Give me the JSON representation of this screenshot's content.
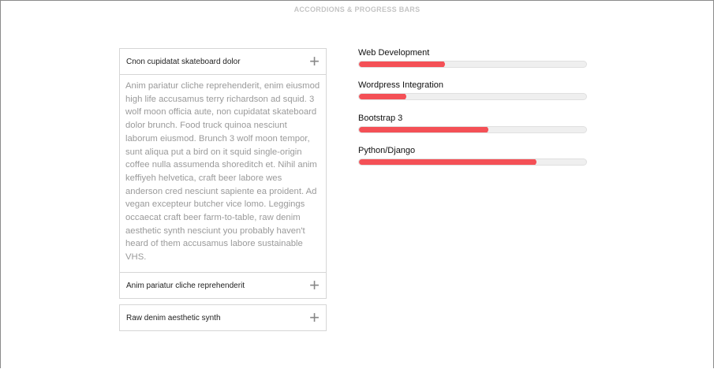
{
  "page": {
    "title": "ACCORDIONS & PROGRESS BARS"
  },
  "accordion": [
    {
      "title": "Cnon cupidatat skateboard dolor",
      "expanded": true,
      "body": "Anim pariatur cliche reprehenderit, enim eiusmod high life accusamus terry richardson ad squid. 3 wolf moon officia aute, non cupidatat skateboard dolor brunch. Food truck quinoa nesciunt laborum eiusmod. Brunch 3 wolf moon tempor, sunt aliqua put a bird on it squid single-origin coffee nulla assumenda shoreditch et. Nihil anim keffiyeh helvetica, craft beer labore wes anderson cred nesciunt sapiente ea proident. Ad vegan excepteur butcher vice lomo. Leggings occaecat craft beer farm-to-table, raw denim aesthetic synth nesciunt you probably haven't heard of them accusamus labore sustainable VHS.",
      "icon": "plus-icon"
    },
    {
      "title": "Anim pariatur cliche reprehenderit",
      "expanded": false,
      "icon": "plus-icon"
    },
    {
      "title": "Raw denim aesthetic synth",
      "expanded": false,
      "icon": "plus-icon"
    }
  ],
  "skills": [
    {
      "label": "Web Development",
      "percent": 38
    },
    {
      "label": "Wordpress Integration",
      "percent": 21
    },
    {
      "label": "Bootstrap 3",
      "percent": 57
    },
    {
      "label": "Python/Django",
      "percent": 78
    }
  ],
  "colors": {
    "accent": "#f45056",
    "track": "#efefef"
  }
}
